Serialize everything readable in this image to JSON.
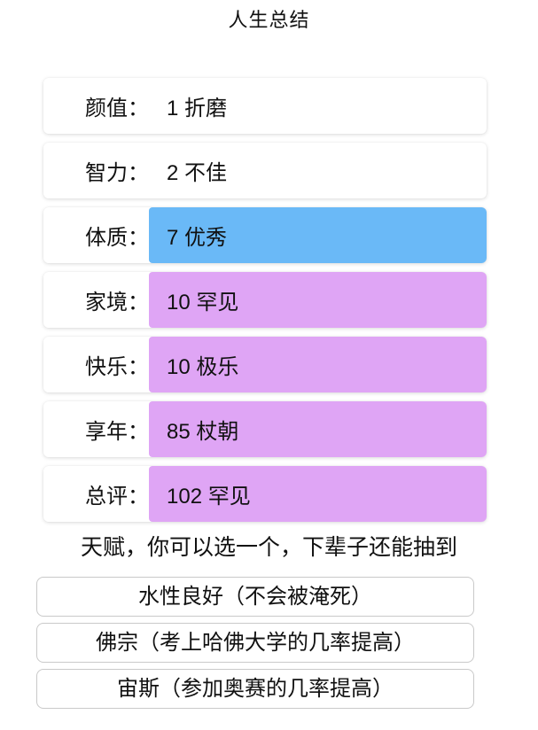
{
  "page": {
    "title": "人生总结"
  },
  "stats": {
    "rows": [
      {
        "label": "颜值：",
        "display": "1 折磨",
        "value": 1,
        "tier": "折磨",
        "grade": "default"
      },
      {
        "label": "智力：",
        "display": "2 不佳",
        "value": 2,
        "tier": "不佳",
        "grade": "default"
      },
      {
        "label": "体质：",
        "display": "7 优秀",
        "value": 7,
        "tier": "优秀",
        "grade": "blue"
      },
      {
        "label": "家境：",
        "display": "10 罕见",
        "value": 10,
        "tier": "罕见",
        "grade": "purple"
      },
      {
        "label": "快乐：",
        "display": "10 极乐",
        "value": 10,
        "tier": "极乐",
        "grade": "purple"
      },
      {
        "label": "享年：",
        "display": "85 杖朝",
        "value": 85,
        "tier": "杖朝",
        "grade": "purple"
      },
      {
        "label": "总评：",
        "display": "102 罕见",
        "value": 102,
        "tier": "罕见",
        "grade": "purple"
      }
    ]
  },
  "talents": {
    "prompt": "天赋，你可以选一个，下辈子还能抽到",
    "options": [
      "水性良好（不会被淹死）",
      "佛宗（考上哈佛大学的几率提高）",
      "宙斯（参加奥赛的几率提高）"
    ]
  },
  "colors": {
    "grade_blue": "#6ab9f7",
    "grade_purple": "#dfa5f5"
  }
}
